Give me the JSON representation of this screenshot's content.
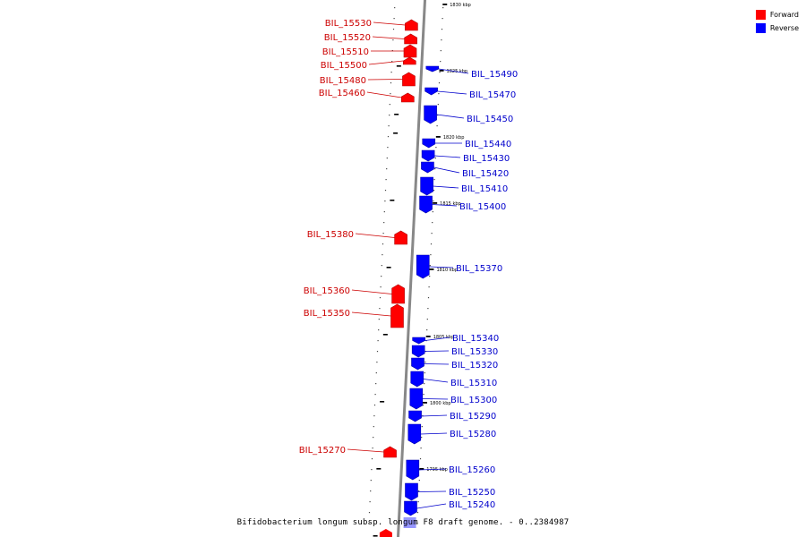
{
  "legend": {
    "forward_label": "Forward",
    "reverse_label": "Reverse",
    "forward_color": "#ff0000",
    "reverse_color": "#0000ff"
  },
  "caption": "Bifidobacterium longum subsp. longum F8 draft genome. - 0..2384987",
  "ticks": [
    "1830 kbp",
    "1825 kbp",
    "1820 kbp",
    "1815 kbp",
    "1810 kbp",
    "1805 kbp",
    "1800 kbp",
    "1795 kbp"
  ],
  "forward_genes": [
    "BIL_15530",
    "BIL_15520",
    "BIL_15510",
    "BIL_15500",
    "BIL_15480",
    "BIL_15460",
    "BIL_15380",
    "BIL_15360",
    "BIL_15350",
    "BIL_15270"
  ],
  "reverse_genes": [
    "BIL_15490",
    "BIL_15470",
    "BIL_15450",
    "BIL_15440",
    "BIL_15430",
    "BIL_15420",
    "BIL_15410",
    "BIL_15400",
    "BIL_15370",
    "BIL_15340",
    "BIL_15330",
    "BIL_15320",
    "BIL_15310",
    "BIL_15300",
    "BIL_15290",
    "BIL_15280",
    "BIL_15260",
    "BIL_15250",
    "BIL_15240"
  ]
}
